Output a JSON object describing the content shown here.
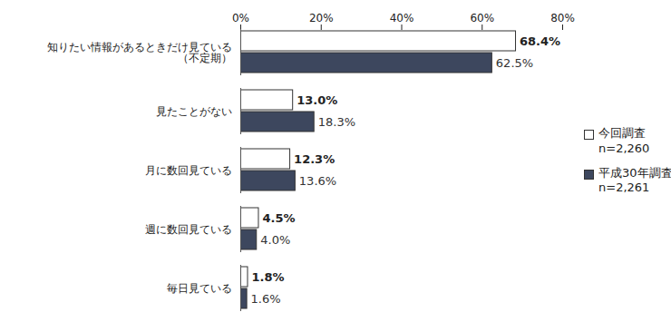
{
  "chart_data": {
    "type": "bar",
    "orientation": "horizontal",
    "categories": [
      "知りたい情報があるときだけ見ている\n（不定期）",
      "見たことがない",
      "月に数回見ている",
      "週に数回見ている",
      "毎日見ている"
    ],
    "series": [
      {
        "name": "今回調査\nn=2,260",
        "color": "#ffffff",
        "values": [
          68.4,
          13.0,
          12.3,
          4.5,
          1.8
        ],
        "value_labels": [
          "68.4%",
          "13.0%",
          "12.3%",
          "4.5%",
          "1.8%"
        ]
      },
      {
        "name": "平成30年調査\nn=2,261",
        "color": "#3d475e",
        "values": [
          62.5,
          18.3,
          13.6,
          4.0,
          1.6
        ],
        "value_labels": [
          "62.5%",
          "18.3%",
          "13.6%",
          "4.0%",
          "1.6%"
        ]
      }
    ],
    "xlim": [
      0,
      80
    ],
    "xticks": [
      {
        "value": 0,
        "label": "0%"
      },
      {
        "value": 20,
        "label": "20%"
      },
      {
        "value": 40,
        "label": "40%"
      },
      {
        "value": 60,
        "label": "60%"
      },
      {
        "value": 80,
        "label": "80%"
      }
    ],
    "grid": false,
    "legend": "right",
    "data_labels": true
  }
}
